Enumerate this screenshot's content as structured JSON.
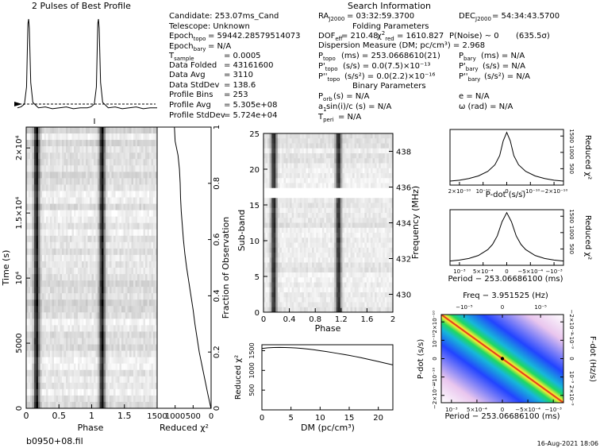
{
  "chart_data": [
    {
      "type": "line",
      "panel": "profile",
      "title": "2 Pulses of Best Profile",
      "x": [
        0,
        0.05,
        0.1,
        0.13,
        0.15,
        0.16,
        0.17,
        0.19,
        0.22,
        0.3,
        0.4,
        0.5,
        0.6,
        0.7,
        0.8,
        0.9,
        1.0,
        1.05,
        1.1,
        1.13,
        1.15,
        1.16,
        1.17,
        1.19,
        1.22,
        1.3,
        1.4,
        1.5,
        1.6,
        1.7,
        1.8,
        1.9,
        2.0
      ],
      "y": [
        0.02,
        0.03,
        0.06,
        0.25,
        0.95,
        1.0,
        0.9,
        0.3,
        0.08,
        0.02,
        0.03,
        0.01,
        0.02,
        0.03,
        0.01,
        0.02,
        0.02,
        0.03,
        0.06,
        0.25,
        0.95,
        1.0,
        0.9,
        0.3,
        0.08,
        0.02,
        0.03,
        0.01,
        0.02,
        0.03,
        0.01,
        0.02,
        0.02
      ],
      "xlim": [
        0,
        2
      ]
    },
    {
      "type": "heatmap",
      "panel": "time-phase",
      "xlabel": "Phase",
      "ylabel": "Time (s)",
      "x_ticks": [
        "0",
        "0.5",
        "1",
        "1.5"
      ],
      "y_ticks": [
        "0",
        "5000",
        "10⁴",
        "1.5×10⁴",
        "2×10⁴"
      ],
      "xlim": [
        0,
        2
      ],
      "ylim": [
        0,
        21600
      ],
      "pulse_phases": [
        0.16,
        1.16
      ]
    },
    {
      "type": "line",
      "panel": "time-chi2",
      "xlabel": "Reduced χ²",
      "ylabel": "Fraction of Observation",
      "x_ticks": [
        "0",
        "500",
        "1000",
        "1500"
      ],
      "y_ticks": [
        "0",
        "0.2",
        "0.4",
        "0.6",
        "0.8",
        "1"
      ],
      "xlim": [
        1500,
        0
      ],
      "ylim": [
        0,
        1
      ],
      "fraction": [
        0,
        0.05,
        0.1,
        0.15,
        0.2,
        0.25,
        0.3,
        0.35,
        0.4,
        0.45,
        0.5,
        0.55,
        0.6,
        0.65,
        0.7,
        0.75,
        0.8,
        0.85,
        0.9,
        0.95,
        1.0
      ],
      "chi2": [
        5,
        90,
        170,
        250,
        330,
        390,
        450,
        500,
        560,
        620,
        680,
        730,
        770,
        800,
        830,
        850,
        860,
        880,
        920,
        1000,
        1020
      ]
    },
    {
      "type": "heatmap",
      "panel": "subband-phase",
      "xlabel": "Phase",
      "ylabel": "Sub-band",
      "y2label": "Frequency (MHz)",
      "x_ticks": [
        "0",
        "0.4",
        "0.8",
        "1.2",
        "1.6",
        "2"
      ],
      "y_ticks": [
        "0",
        "5",
        "10",
        "15",
        "20",
        "25"
      ],
      "y2_ticks": [
        "430",
        "432",
        "434",
        "436",
        "438"
      ],
      "xlim": [
        0,
        2
      ],
      "ylim": [
        0,
        25
      ],
      "pulse_phases": [
        0.16,
        1.16
      ]
    },
    {
      "type": "line",
      "panel": "dm-chi2",
      "xlabel": "DM (pc/cm³)",
      "ylabel": "Reduced χ²",
      "x_ticks": [
        "0",
        "5",
        "10",
        "15",
        "20"
      ],
      "y_ticks": [
        "500",
        "1000",
        "1500"
      ],
      "xlim": [
        0,
        22.5
      ],
      "ylim": [
        0,
        1650
      ],
      "x": [
        0,
        1,
        2,
        3,
        4,
        5,
        6,
        7,
        8,
        9,
        10,
        11,
        12,
        13,
        14,
        15,
        16,
        17,
        18,
        19,
        20,
        21,
        22.5
      ],
      "y": [
        1555,
        1572,
        1580,
        1582,
        1580,
        1575,
        1566,
        1555,
        1540,
        1522,
        1500,
        1478,
        1455,
        1430,
        1405,
        1380,
        1352,
        1322,
        1290,
        1258,
        1225,
        1190,
        1140
      ]
    },
    {
      "type": "line",
      "panel": "pdot-chi2",
      "xlabel": "P-dot (s/s)",
      "ylabel": "Reduced χ²",
      "x_ticks": [
        "2×10⁻¹⁰",
        "10⁻¹⁰",
        "0",
        "−10⁻¹⁰",
        "−2×10⁻¹⁰"
      ],
      "y_ticks": [
        "500",
        "1000",
        "1500"
      ],
      "xlim": [
        2.4e-10,
        -2.4e-10
      ],
      "ylim": [
        0,
        1700
      ],
      "x": [
        2.4e-10,
        2e-10,
        1.6e-10,
        1.2e-10,
        8e-11,
        5e-11,
        3e-11,
        1.5e-11,
        0,
        -1.5e-11,
        -3e-11,
        -5e-11,
        -8e-11,
        -1.2e-10,
        -1.6e-10,
        -2e-10,
        -2.4e-10
      ],
      "y": [
        120,
        150,
        200,
        280,
        420,
        620,
        900,
        1350,
        1610,
        1350,
        900,
        620,
        420,
        280,
        200,
        150,
        120
      ]
    },
    {
      "type": "line",
      "panel": "period-chi2",
      "xlabel": "Period − 253.06686100 (ms)",
      "ylabel": "Reduced χ²",
      "x_ticks": [
        "10⁻³",
        "5×10⁻⁴",
        "0",
        "−5×10⁻⁴",
        "−10⁻³"
      ],
      "y_ticks": [
        "500",
        "1000",
        "1500"
      ],
      "xlim": [
        0.0012,
        -0.0012
      ],
      "ylim": [
        0,
        1700
      ],
      "x": [
        0.0012,
        0.001,
        0.0008,
        0.0006,
        0.0004,
        0.0003,
        0.0002,
        0.0001,
        0,
        -0.0001,
        -0.0002,
        -0.0003,
        -0.0004,
        -0.0006,
        -0.0008,
        -0.001,
        -0.0012
      ],
      "y": [
        130,
        160,
        210,
        300,
        480,
        640,
        900,
        1330,
        1610,
        1330,
        900,
        640,
        480,
        300,
        210,
        160,
        130
      ]
    },
    {
      "type": "heatmap",
      "panel": "period-pdot",
      "title": "Freq − 3.951525 (Hz)",
      "xlabel": "Period − 253.06686100 (ms)",
      "ylabel": "P-dot (s/s)",
      "y2label": "F-dot (Hz/s)",
      "x_ticks": [
        "10⁻³",
        "5×10⁻⁴",
        "0",
        "−5×10⁻⁴",
        "−10⁻³"
      ],
      "x2_ticks": [
        "−10⁻⁵",
        "0",
        "10⁻⁵"
      ],
      "y_ticks": [
        "−2×10⁻¹⁰",
        "−10⁻¹⁰",
        "0",
        "10⁻¹⁰",
        "2×10⁻¹⁰"
      ],
      "y2_ticks": [
        "−2×10⁻⁹",
        "−10⁻⁹",
        "0",
        "10⁻⁹",
        "2×10⁻⁹"
      ],
      "xlim": [
        0.0012,
        -0.0012
      ],
      "ylim": [
        -2.4e-10,
        2.4e-10
      ],
      "best_fit": [
        0,
        0
      ]
    }
  ],
  "info": {
    "heading_search": "Search Information",
    "heading_folding": "Folding Parameters",
    "heading_binary": "Binary Parameters",
    "candidate": "Candidate:  253.07ms_Cand",
    "telescope": "Telescope:  Unknown",
    "epoch_topo": "= 59442.28579514073",
    "epoch_bary": "= N/A",
    "t_sample": "=    0.0005",
    "data_folded": "=    43161600",
    "data_avg": "=    3110",
    "data_stddev": "=    138.6",
    "profile_bins": "=    253",
    "profile_avg": "=    5.305e+08",
    "profile_stddev": "=    5.724e+04",
    "ra": "= 03:32:59.3700",
    "dec": "= 54:34:43.5700",
    "dof": "= 210.48",
    "chi2_red": "= 1610.827",
    "p_noise": "P(Noise) ~ 0",
    "sigma": "(635.5σ)",
    "dm": "Dispersion Measure (DM; pc/cm³) = 2.968",
    "p_topo": "(ms)   =  253.0668610(21)",
    "pd_topo": "(s/s) = 0.0(7.5)×10⁻¹³",
    "pdd_topo": "(s/s²) = 0.0(2.2)×10⁻¹⁶",
    "p_bary": "(ms) = N/A",
    "pd_bary": "(s/s) = N/A",
    "pdd_bary": "(s/s²) = N/A",
    "p_orb": "(s) = N/A",
    "e": "e = N/A",
    "a1": "sin(i)/c (s) = N/A",
    "omega": "ω (rad) = N/A",
    "t_peri": "= N/A"
  },
  "footer": {
    "filename": "b0950+08.fil",
    "date": "16-Aug-2021 18:06"
  }
}
